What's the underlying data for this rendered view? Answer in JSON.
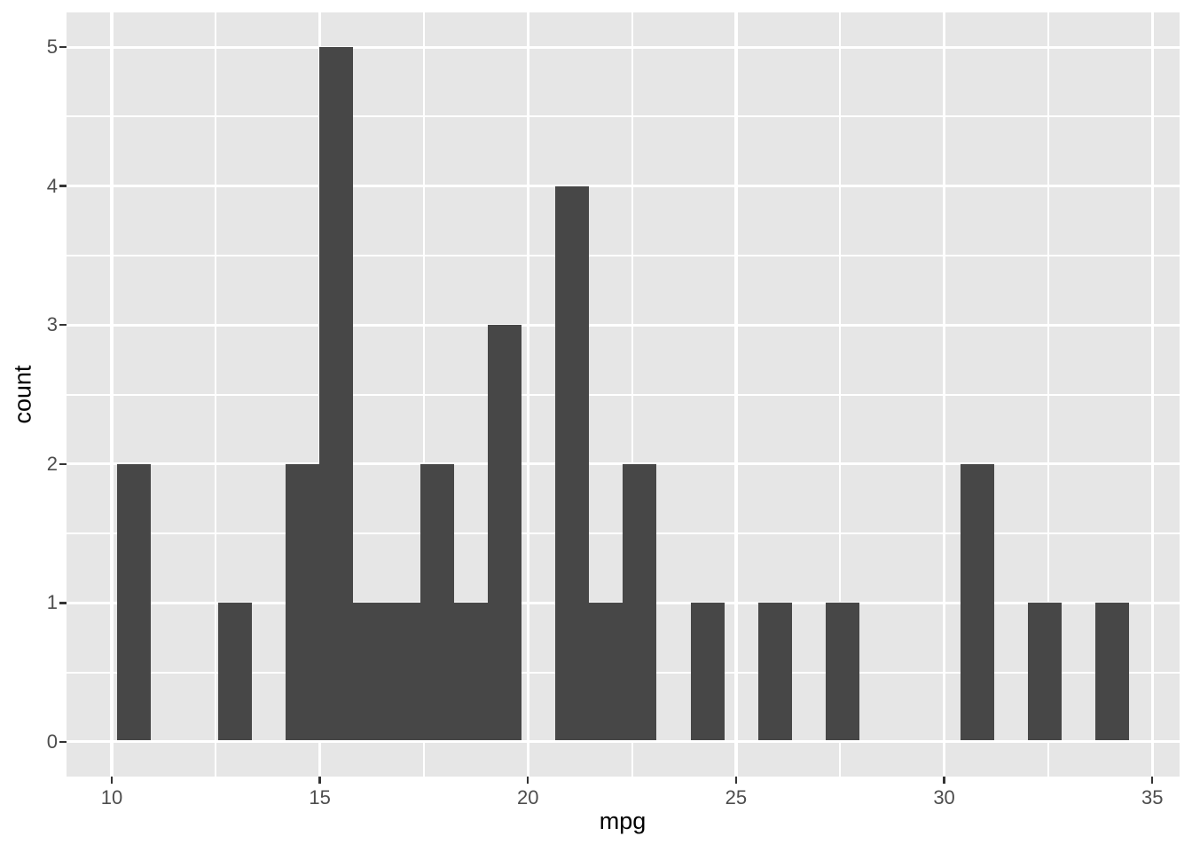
{
  "chart_data": {
    "type": "bar",
    "subtype": "histogram",
    "title": "",
    "xlabel": "mpg",
    "ylabel": "count",
    "legend_position": "none",
    "grid": true,
    "x_domain": [
      8.914,
      35.656
    ],
    "y_domain": [
      -0.25,
      5.25
    ],
    "x_ticks": [
      10,
      15,
      20,
      25,
      30,
      35
    ],
    "x_minor_ticks": [
      12.5,
      17.5,
      22.5,
      27.5,
      32.5
    ],
    "y_ticks": [
      0,
      1,
      2,
      3,
      4,
      5
    ],
    "y_minor_ticks": [
      0.5,
      1.5,
      2.5,
      3.5,
      4.5
    ],
    "binwidth": 0.8103,
    "bins": [
      {
        "x0": 10.129,
        "count": 2
      },
      {
        "x0": 12.56,
        "count": 1
      },
      {
        "x0": 14.181,
        "count": 2
      },
      {
        "x0": 14.991,
        "count": 5
      },
      {
        "x0": 15.802,
        "count": 1
      },
      {
        "x0": 16.612,
        "count": 1
      },
      {
        "x0": 17.422,
        "count": 2
      },
      {
        "x0": 18.233,
        "count": 1
      },
      {
        "x0": 19.043,
        "count": 3
      },
      {
        "x0": 20.664,
        "count": 4
      },
      {
        "x0": 21.474,
        "count": 1
      },
      {
        "x0": 22.284,
        "count": 2
      },
      {
        "x0": 23.905,
        "count": 1
      },
      {
        "x0": 25.526,
        "count": 1
      },
      {
        "x0": 27.147,
        "count": 1
      },
      {
        "x0": 30.388,
        "count": 2
      },
      {
        "x0": 32.009,
        "count": 1
      },
      {
        "x0": 33.629,
        "count": 1
      }
    ],
    "colors": {
      "bar_fill": "#474747",
      "panel_bg": "#E6E6E6",
      "grid": "#FFFFFF",
      "tick_mark": "#333333",
      "axis_text": "#4D4D4D",
      "axis_title": "#000000",
      "figure_bg": "#FFFFFF"
    }
  }
}
